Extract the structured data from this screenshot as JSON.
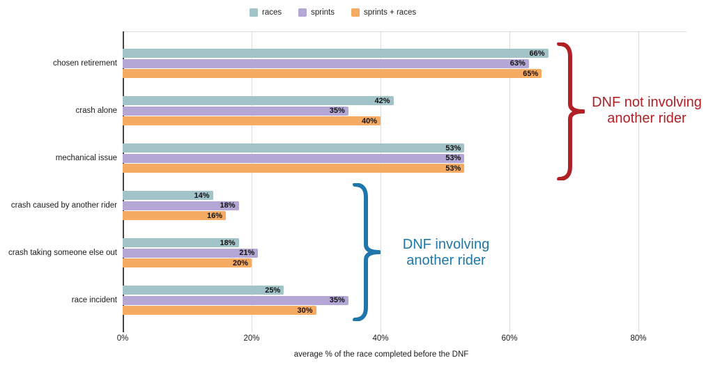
{
  "chart_data": {
    "type": "bar",
    "orientation": "horizontal",
    "title": "",
    "xlabel": "average % of the race completed before the DNF",
    "ylabel": "",
    "xlim": [
      0,
      87.5
    ],
    "grid": true,
    "legend_position": "top",
    "value_suffix": "%",
    "categories": [
      "chosen retirement",
      "crash alone",
      "mechanical issue",
      "crash caused by another rider",
      "crash taking someone else out",
      "race incident"
    ],
    "series": [
      {
        "name": "races",
        "color": "#a2c4c9",
        "values": [
          66,
          42,
          53,
          14,
          18,
          25
        ]
      },
      {
        "name": "sprints",
        "color": "#b4a7d6",
        "values": [
          63,
          35,
          53,
          18,
          21,
          35
        ]
      },
      {
        "name": "sprints + races",
        "color": "#f6ab63",
        "values": [
          65,
          40,
          53,
          16,
          20,
          30
        ]
      }
    ],
    "x_ticks": [
      {
        "label": "0%",
        "value": 0
      },
      {
        "label": "20%",
        "value": 20
      },
      {
        "label": "40%",
        "value": 40
      },
      {
        "label": "60%",
        "value": 60
      },
      {
        "label": "80%",
        "value": 80
      }
    ],
    "annotations": [
      {
        "lines": [
          "DNF not involving",
          "another rider"
        ],
        "color": "#b02025",
        "covers_categories": [
          "chosen retirement",
          "crash alone",
          "mechanical issue"
        ]
      },
      {
        "lines": [
          "DNF involving",
          "another rider"
        ],
        "color": "#1e76ab",
        "covers_categories": [
          "crash caused by another rider",
          "crash taking someone else out",
          "race incident"
        ]
      }
    ]
  }
}
